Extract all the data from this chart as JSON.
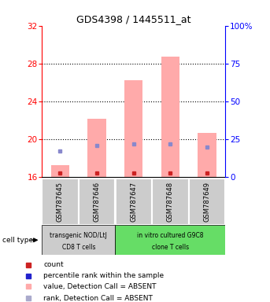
{
  "title": "GDS4398 / 1445511_at",
  "samples": [
    "GSM787645",
    "GSM787646",
    "GSM787647",
    "GSM787648",
    "GSM787649"
  ],
  "pink_bar_tops": [
    17.2,
    22.1,
    26.2,
    28.7,
    20.6
  ],
  "blue_square_y": [
    18.7,
    19.3,
    19.5,
    19.5,
    19.1
  ],
  "red_square_y": [
    16.35,
    16.35,
    16.35,
    16.35,
    16.35
  ],
  "bar_bottom": 16,
  "ylim_left": [
    16,
    32
  ],
  "ylim_right": [
    0,
    100
  ],
  "yticks_left": [
    16,
    20,
    24,
    28,
    32
  ],
  "yticks_right": [
    0,
    25,
    50,
    75,
    100
  ],
  "ytick_labels_right": [
    "0",
    "25",
    "50",
    "75",
    "100%"
  ],
  "group1_label_line1": "transgenic NOD/LtJ",
  "group1_label_line2": "CD8 T cells",
  "group2_label_line1": "in vitro cultured G9C8",
  "group2_label_line2": "clone T cells",
  "cell_type_label": "cell type",
  "legend_items": [
    {
      "label": "count",
      "color": "#cc2222"
    },
    {
      "label": "percentile rank within the sample",
      "color": "#2222cc"
    },
    {
      "label": "value, Detection Call = ABSENT",
      "color": "#ffaaaa"
    },
    {
      "label": "rank, Detection Call = ABSENT",
      "color": "#aaaacc"
    }
  ],
  "pink_bar_color": "#ffaaaa",
  "pink_bar_width": 0.5,
  "blue_sq_color": "#8888cc",
  "red_sq_color": "#cc2222",
  "group1_bg": "#cccccc",
  "group2_bg": "#66dd66",
  "dotted_lines": [
    20,
    24,
    28
  ]
}
